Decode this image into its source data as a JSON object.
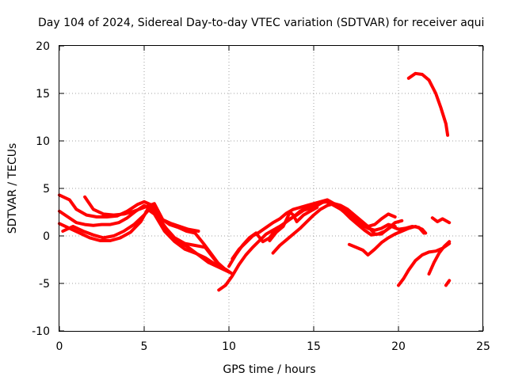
{
  "chart_data": {
    "type": "line",
    "title": "Day 104 of 2024, Sidereal Day-to-day VTEC variation (SDTVAR) for receiver aqui",
    "xlabel": "GPS time / hours",
    "ylabel": "SDTVAR / TECUs",
    "xlim": [
      0,
      25
    ],
    "ylim": [
      -10,
      20
    ],
    "xticks": [
      0,
      5,
      10,
      15,
      20,
      25
    ],
    "yticks": [
      -10,
      -5,
      0,
      5,
      10,
      15,
      20
    ],
    "xtick_labels": [
      "0",
      "5",
      "10",
      "15",
      "20",
      "25"
    ],
    "ytick_labels": [
      "-10",
      "-5",
      "0",
      "5",
      "10",
      "15",
      "20"
    ],
    "grid": true,
    "line_color": "#ff0000",
    "series": [
      {
        "name": "s1",
        "points": [
          [
            0.0,
            4.3
          ],
          [
            0.6,
            3.8
          ],
          [
            1.0,
            2.8
          ],
          [
            1.6,
            2.2
          ],
          [
            2.2,
            2.0
          ],
          [
            2.8,
            2.0
          ],
          [
            3.4,
            2.1
          ],
          [
            4.0,
            2.6
          ],
          [
            4.6,
            3.3
          ],
          [
            5.0,
            3.6
          ],
          [
            5.5,
            3.2
          ],
          [
            6.0,
            1.5
          ],
          [
            6.5,
            0.3
          ],
          [
            7.0,
            -0.6
          ],
          [
            7.6,
            -1.2
          ],
          [
            8.2,
            -2.0
          ],
          [
            8.8,
            -2.8
          ],
          [
            9.4,
            -3.3
          ],
          [
            10.0,
            -3.8
          ]
        ]
      },
      {
        "name": "s2",
        "points": [
          [
            0.0,
            2.6
          ],
          [
            0.5,
            2.0
          ],
          [
            1.0,
            1.4
          ],
          [
            1.5,
            1.2
          ],
          [
            2.0,
            1.1
          ],
          [
            2.5,
            1.2
          ],
          [
            3.0,
            1.2
          ],
          [
            3.5,
            1.4
          ],
          [
            4.0,
            1.9
          ],
          [
            4.5,
            2.6
          ],
          [
            5.0,
            3.2
          ],
          [
            5.5,
            2.7
          ],
          [
            6.0,
            1.8
          ],
          [
            6.5,
            1.2
          ],
          [
            7.0,
            0.9
          ],
          [
            7.5,
            0.5
          ],
          [
            8.0,
            0.3
          ],
          [
            8.5,
            -0.8
          ],
          [
            9.0,
            -2.0
          ],
          [
            9.5,
            -3.2
          ],
          [
            10.0,
            -3.8
          ]
        ]
      },
      {
        "name": "s3",
        "points": [
          [
            0.0,
            1.3
          ],
          [
            0.6,
            0.8
          ],
          [
            1.2,
            0.3
          ],
          [
            1.8,
            -0.2
          ],
          [
            2.4,
            -0.5
          ],
          [
            3.0,
            -0.5
          ],
          [
            3.6,
            -0.2
          ],
          [
            4.2,
            0.4
          ],
          [
            4.8,
            1.5
          ],
          [
            5.2,
            2.8
          ],
          [
            5.6,
            2.3
          ],
          [
            6.2,
            0.5
          ],
          [
            6.8,
            -0.6
          ],
          [
            7.4,
            -1.4
          ],
          [
            8.0,
            -1.8
          ],
          [
            8.6,
            -2.3
          ],
          [
            9.2,
            -3.0
          ],
          [
            9.8,
            -3.5
          ],
          [
            10.2,
            -4.0
          ]
        ]
      },
      {
        "name": "s4",
        "points": [
          [
            1.5,
            4.1
          ],
          [
            2.0,
            2.8
          ],
          [
            2.6,
            2.3
          ],
          [
            3.2,
            2.2
          ],
          [
            3.8,
            2.3
          ],
          [
            4.4,
            2.6
          ],
          [
            5.0,
            3.0
          ],
          [
            5.6,
            3.4
          ],
          [
            6.1,
            1.7
          ],
          [
            6.6,
            1.3
          ],
          [
            7.1,
            1.0
          ],
          [
            7.6,
            0.7
          ],
          [
            8.2,
            0.5
          ]
        ]
      },
      {
        "name": "s5",
        "points": [
          [
            0.2,
            0.5
          ],
          [
            0.8,
            1.0
          ],
          [
            1.4,
            0.5
          ],
          [
            2.0,
            0.1
          ],
          [
            2.6,
            -0.2
          ],
          [
            3.2,
            0.0
          ],
          [
            3.8,
            0.5
          ],
          [
            4.4,
            1.2
          ],
          [
            5.0,
            2.2
          ],
          [
            5.4,
            3.0
          ],
          [
            5.8,
            2.0
          ],
          [
            6.3,
            0.8
          ],
          [
            6.8,
            -0.2
          ],
          [
            7.4,
            -0.8
          ],
          [
            8.0,
            -1.0
          ],
          [
            8.6,
            -1.2
          ],
          [
            9.2,
            -2.6
          ],
          [
            9.7,
            -3.4
          ]
        ]
      },
      {
        "name": "s6",
        "points": [
          [
            9.4,
            -5.7
          ],
          [
            9.8,
            -5.2
          ],
          [
            10.2,
            -4.2
          ],
          [
            10.6,
            -3.0
          ],
          [
            11.0,
            -2.0
          ],
          [
            11.4,
            -1.2
          ],
          [
            11.8,
            -0.5
          ],
          [
            12.2,
            0.2
          ],
          [
            12.6,
            0.6
          ],
          [
            13.0,
            1.0
          ],
          [
            13.4,
            1.5
          ],
          [
            13.8,
            2.0
          ],
          [
            14.2,
            2.6
          ],
          [
            14.6,
            3.0
          ],
          [
            15.0,
            3.2
          ],
          [
            15.4,
            3.5
          ],
          [
            15.8,
            3.6
          ],
          [
            16.2,
            3.2
          ],
          [
            16.6,
            2.8
          ],
          [
            17.0,
            2.5
          ],
          [
            17.4,
            1.8
          ],
          [
            17.8,
            1.2
          ],
          [
            18.2,
            0.8
          ],
          [
            18.6,
            0.6
          ],
          [
            19.0,
            0.8
          ],
          [
            19.4,
            1.2
          ],
          [
            19.8,
            1.0
          ]
        ]
      },
      {
        "name": "s7",
        "points": [
          [
            10.0,
            -3.2
          ],
          [
            10.4,
            -2.0
          ],
          [
            10.8,
            -1.0
          ],
          [
            11.2,
            -0.2
          ],
          [
            11.6,
            0.3
          ],
          [
            12.0,
            -0.6
          ],
          [
            12.4,
            -0.2
          ],
          [
            12.8,
            0.8
          ],
          [
            13.2,
            1.2
          ],
          [
            13.6,
            1.8
          ],
          [
            14.0,
            2.2
          ],
          [
            14.4,
            2.7
          ],
          [
            14.8,
            2.9
          ],
          [
            15.2,
            3.2
          ],
          [
            15.6,
            3.6
          ],
          [
            16.0,
            3.5
          ],
          [
            16.4,
            3.1
          ],
          [
            16.8,
            2.5
          ],
          [
            17.2,
            1.8
          ],
          [
            17.6,
            1.2
          ],
          [
            18.0,
            0.6
          ],
          [
            18.4,
            0.1
          ],
          [
            18.8,
            0.2
          ],
          [
            19.2,
            0.5
          ],
          [
            19.6,
            1.0
          ],
          [
            20.0,
            0.7
          ],
          [
            20.4,
            0.8
          ],
          [
            20.8,
            1.0
          ],
          [
            21.2,
            0.9
          ],
          [
            21.5,
            0.3
          ]
        ]
      },
      {
        "name": "s8",
        "points": [
          [
            10.2,
            -2.4
          ],
          [
            10.6,
            -1.4
          ],
          [
            11.0,
            -0.7
          ],
          [
            11.4,
            0.0
          ],
          [
            11.8,
            0.4
          ],
          [
            12.2,
            0.9
          ],
          [
            12.6,
            1.4
          ],
          [
            13.0,
            1.8
          ],
          [
            13.4,
            2.4
          ],
          [
            13.8,
            2.8
          ],
          [
            14.2,
            3.0
          ],
          [
            14.6,
            3.2
          ],
          [
            15.0,
            3.4
          ],
          [
            15.4,
            3.6
          ],
          [
            15.8,
            3.8
          ],
          [
            16.2,
            3.4
          ],
          [
            16.6,
            3.0
          ],
          [
            17.0,
            2.6
          ],
          [
            17.4,
            2.0
          ],
          [
            17.8,
            1.4
          ],
          [
            18.2,
            1.0
          ],
          [
            18.6,
            1.2
          ],
          [
            19.0,
            1.8
          ],
          [
            19.4,
            2.3
          ],
          [
            19.8,
            2.0
          ]
        ]
      },
      {
        "name": "s9",
        "points": [
          [
            12.4,
            -0.5
          ],
          [
            12.8,
            0.4
          ],
          [
            13.2,
            1.0
          ],
          [
            13.6,
            2.5
          ],
          [
            13.8,
            2.2
          ],
          [
            14.0,
            1.5
          ],
          [
            14.4,
            2.2
          ],
          [
            14.8,
            2.6
          ],
          [
            15.2,
            3.0
          ]
        ]
      },
      {
        "name": "s10",
        "points": [
          [
            12.6,
            -1.8
          ],
          [
            13.0,
            -1.0
          ],
          [
            13.4,
            -0.4
          ],
          [
            13.8,
            0.2
          ],
          [
            14.2,
            0.8
          ],
          [
            14.6,
            1.5
          ],
          [
            15.0,
            2.2
          ],
          [
            15.4,
            2.8
          ],
          [
            15.8,
            3.2
          ],
          [
            16.2,
            3.4
          ],
          [
            16.6,
            3.2
          ],
          [
            17.0,
            2.8
          ],
          [
            17.4,
            2.2
          ],
          [
            17.8,
            1.6
          ],
          [
            18.2,
            1.0
          ],
          [
            18.6,
            0.2
          ],
          [
            19.0,
            0.2
          ],
          [
            19.4,
            0.8
          ],
          [
            19.8,
            1.4
          ],
          [
            20.2,
            1.6
          ]
        ]
      },
      {
        "name": "s11",
        "points": [
          [
            17.1,
            -0.9
          ],
          [
            17.5,
            -1.2
          ],
          [
            17.9,
            -1.5
          ],
          [
            18.2,
            -2.0
          ],
          [
            18.6,
            -1.4
          ],
          [
            19.0,
            -0.7
          ],
          [
            19.4,
            -0.2
          ],
          [
            19.8,
            0.2
          ],
          [
            20.2,
            0.5
          ],
          [
            20.6,
            0.8
          ],
          [
            21.0,
            1.0
          ],
          [
            21.4,
            0.7
          ],
          [
            21.6,
            0.3
          ]
        ]
      },
      {
        "name": "s12",
        "points": [
          [
            20.0,
            -5.2
          ],
          [
            20.3,
            -4.5
          ],
          [
            20.6,
            -3.6
          ],
          [
            21.0,
            -2.6
          ],
          [
            21.4,
            -2.0
          ],
          [
            21.8,
            -1.7
          ],
          [
            22.2,
            -1.6
          ],
          [
            22.6,
            -1.3
          ],
          [
            23.0,
            -0.8
          ]
        ]
      },
      {
        "name": "s13",
        "points": [
          [
            21.8,
            -4.0
          ],
          [
            22.1,
            -2.8
          ],
          [
            22.4,
            -1.8
          ],
          [
            22.7,
            -1.1
          ],
          [
            23.0,
            -0.6
          ]
        ]
      },
      {
        "name": "s14",
        "points": [
          [
            20.6,
            16.6
          ],
          [
            21.0,
            17.1
          ],
          [
            21.4,
            17.0
          ],
          [
            21.8,
            16.4
          ],
          [
            22.2,
            15.0
          ],
          [
            22.5,
            13.5
          ],
          [
            22.8,
            11.8
          ],
          [
            22.9,
            10.6
          ]
        ]
      },
      {
        "name": "s15",
        "points": [
          [
            22.0,
            1.9
          ],
          [
            22.3,
            1.5
          ],
          [
            22.6,
            1.8
          ],
          [
            23.0,
            1.4
          ]
        ]
      },
      {
        "name": "s16",
        "points": [
          [
            22.8,
            -5.2
          ],
          [
            23.0,
            -4.7
          ]
        ]
      }
    ]
  }
}
